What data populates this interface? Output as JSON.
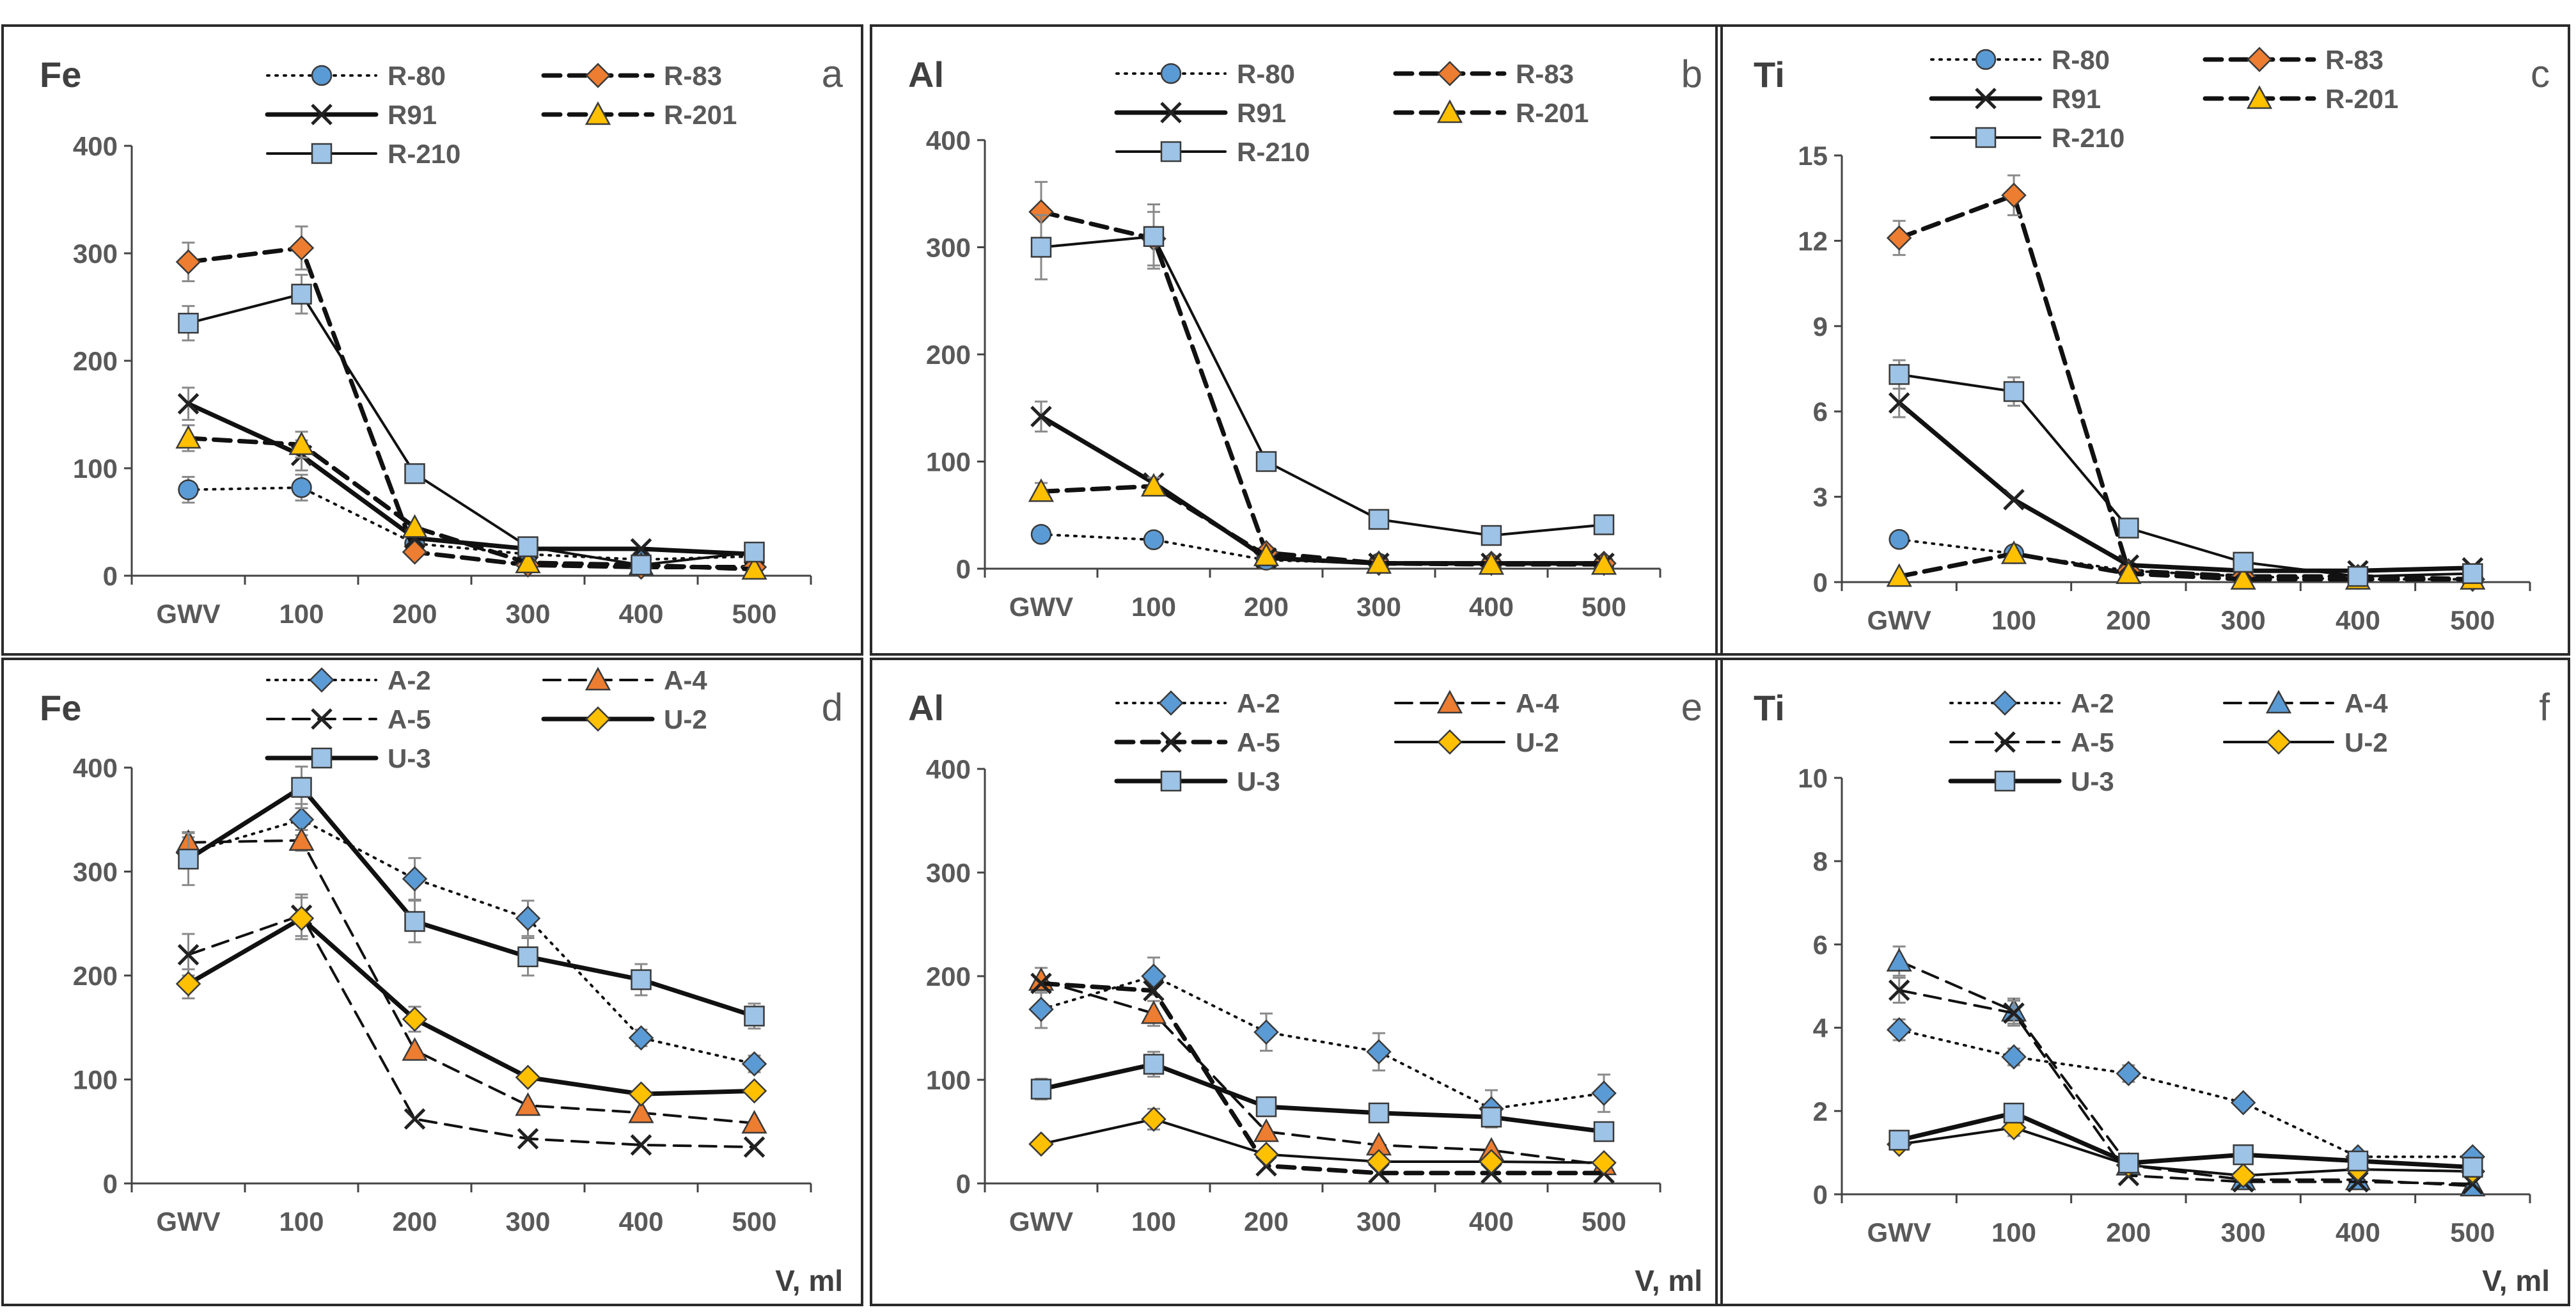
{
  "figure": {
    "x_categories": [
      "GWV",
      "100",
      "200",
      "300",
      "400",
      "500"
    ],
    "x_axis_label": "V, ml"
  },
  "chart_data": [
    {
      "id": "a",
      "type": "line",
      "panel_letter": "a",
      "title": "Fe",
      "categories": [
        "GWV",
        "100",
        "200",
        "300",
        "400",
        "500"
      ],
      "ylim": [
        0,
        400
      ],
      "yticks": [
        0,
        100,
        200,
        300,
        400
      ],
      "xlabel": "",
      "series": [
        {
          "name": "R-80",
          "values": [
            80,
            82,
            30,
            20,
            15,
            18
          ],
          "err": [
            12,
            12,
            0,
            0,
            0,
            0
          ],
          "marker": "circle",
          "fill": "#5b9bd5",
          "dash": "dot",
          "weight": "normal"
        },
        {
          "name": "R-83",
          "values": [
            292,
            305,
            22,
            10,
            8,
            8
          ],
          "err": [
            18,
            20,
            0,
            0,
            0,
            0
          ],
          "marker": "diamond",
          "fill": "#ed7d31",
          "dash": "dash",
          "weight": "bold"
        },
        {
          "name": "R91",
          "values": [
            160,
            112,
            35,
            25,
            25,
            20
          ],
          "err": [
            15,
            14,
            0,
            0,
            0,
            0
          ],
          "marker": "x",
          "fill": "none",
          "dash": "solid",
          "weight": "bold"
        },
        {
          "name": "R-201",
          "values": [
            128,
            122,
            45,
            12,
            10,
            6
          ],
          "err": [
            12,
            12,
            0,
            0,
            0,
            0
          ],
          "marker": "triangle",
          "fill": "#ffc000",
          "dash": "dash",
          "weight": "bold"
        },
        {
          "name": "R-210",
          "values": [
            235,
            262,
            95,
            27,
            10,
            22
          ],
          "err": [
            16,
            18,
            0,
            0,
            0,
            0
          ],
          "marker": "square",
          "fill": "#9dc3e6",
          "dash": "solid",
          "weight": "normal"
        }
      ]
    },
    {
      "id": "b",
      "type": "line",
      "panel_letter": "b",
      "title": "Al",
      "categories": [
        "GWV",
        "100",
        "200",
        "300",
        "400",
        "500"
      ],
      "ylim": [
        0,
        400
      ],
      "yticks": [
        0,
        100,
        200,
        300,
        400
      ],
      "xlabel": "",
      "series": [
        {
          "name": "R-80",
          "values": [
            32,
            27,
            8,
            5,
            4,
            4
          ],
          "err": [
            0,
            0,
            0,
            0,
            0,
            0
          ],
          "marker": "circle",
          "fill": "#5b9bd5",
          "dash": "dot",
          "weight": "normal"
        },
        {
          "name": "R-83",
          "values": [
            333,
            308,
            15,
            5,
            5,
            5
          ],
          "err": [
            28,
            25,
            0,
            0,
            0,
            0
          ],
          "marker": "diamond",
          "fill": "#ed7d31",
          "dash": "dash",
          "weight": "bold"
        },
        {
          "name": "R91",
          "values": [
            142,
            80,
            10,
            5,
            5,
            5
          ],
          "err": [
            14,
            0,
            0,
            0,
            0,
            0
          ],
          "marker": "x",
          "fill": "none",
          "dash": "solid",
          "weight": "bold"
        },
        {
          "name": "R-201",
          "values": [
            72,
            77,
            12,
            5,
            4,
            4
          ],
          "err": [
            8,
            8,
            0,
            0,
            0,
            0
          ],
          "marker": "triangle",
          "fill": "#ffc000",
          "dash": "dash",
          "weight": "bold"
        },
        {
          "name": "R-210",
          "values": [
            300,
            310,
            100,
            46,
            31,
            41
          ],
          "err": [
            30,
            30,
            8,
            0,
            0,
            0
          ],
          "marker": "square",
          "fill": "#9dc3e6",
          "dash": "solid",
          "weight": "normal"
        }
      ]
    },
    {
      "id": "c",
      "type": "line",
      "panel_letter": "c",
      "title": "Ti",
      "categories": [
        "GWV",
        "100",
        "200",
        "300",
        "400",
        "500"
      ],
      "ylim": [
        0,
        15
      ],
      "yticks": [
        0,
        3,
        6,
        9,
        12,
        15
      ],
      "xlabel": "",
      "series": [
        {
          "name": "R-80",
          "values": [
            1.5,
            1.0,
            0.4,
            0.2,
            0.1,
            0.1
          ],
          "err": [
            0,
            0,
            0,
            0,
            0,
            0
          ],
          "marker": "circle",
          "fill": "#5b9bd5",
          "dash": "dot",
          "weight": "normal"
        },
        {
          "name": "R-83",
          "values": [
            12.1,
            13.6,
            0.4,
            0.2,
            0.2,
            0.1
          ],
          "err": [
            0.6,
            0.7,
            0,
            0,
            0,
            0
          ],
          "marker": "diamond",
          "fill": "#ed7d31",
          "dash": "dash",
          "weight": "bold"
        },
        {
          "name": "R91",
          "values": [
            6.3,
            2.9,
            0.6,
            0.4,
            0.4,
            0.5
          ],
          "err": [
            0.5,
            0,
            0,
            0,
            0,
            0
          ],
          "marker": "x",
          "fill": "none",
          "dash": "solid",
          "weight": "bold"
        },
        {
          "name": "R-201",
          "values": [
            0.2,
            1.0,
            0.3,
            0.1,
            0.1,
            0.1
          ],
          "err": [
            0,
            0,
            0,
            0,
            0,
            0
          ],
          "marker": "triangle",
          "fill": "#ffc000",
          "dash": "dash",
          "weight": "bold"
        },
        {
          "name": "R-210",
          "values": [
            7.3,
            6.7,
            1.9,
            0.7,
            0.2,
            0.3
          ],
          "err": [
            0.5,
            0.5,
            0,
            0,
            0,
            0
          ],
          "marker": "square",
          "fill": "#9dc3e6",
          "dash": "solid",
          "weight": "normal"
        }
      ]
    },
    {
      "id": "d",
      "type": "line",
      "panel_letter": "d",
      "title": "Fe",
      "categories": [
        "GWV",
        "100",
        "200",
        "300",
        "400",
        "500"
      ],
      "ylim": [
        0,
        400
      ],
      "yticks": [
        0,
        100,
        200,
        300,
        400
      ],
      "xlabel": "V, ml",
      "series": [
        {
          "name": "A-2",
          "values": [
            318,
            350,
            293,
            255,
            140,
            115
          ],
          "err": [
            15,
            15,
            20,
            17,
            8,
            8
          ],
          "marker": "diamond",
          "fill": "#5b9bd5",
          "dash": "dot",
          "weight": "normal"
        },
        {
          "name": "A-4",
          "values": [
            328,
            330,
            128,
            75,
            68,
            58
          ],
          "err": [
            10,
            10,
            0,
            0,
            0,
            0
          ],
          "marker": "triangle",
          "fill": "#ed7d31",
          "dash": "dash",
          "weight": "normal"
        },
        {
          "name": "A-5",
          "values": [
            220,
            258,
            62,
            43,
            37,
            35
          ],
          "err": [
            20,
            20,
            0,
            0,
            0,
            0
          ],
          "marker": "x",
          "fill": "none",
          "dash": "dash",
          "weight": "normal"
        },
        {
          "name": "U-2",
          "values": [
            192,
            255,
            158,
            102,
            86,
            89
          ],
          "err": [
            14,
            20,
            12,
            0,
            0,
            0
          ],
          "marker": "diamond",
          "fill": "#ffc000",
          "dash": "solid",
          "weight": "bold"
        },
        {
          "name": "U-3",
          "values": [
            312,
            381,
            252,
            218,
            196,
            161
          ],
          "err": [
            25,
            20,
            20,
            18,
            15,
            12
          ],
          "marker": "square",
          "fill": "#9dc3e6",
          "dash": "solid",
          "weight": "bold"
        }
      ]
    },
    {
      "id": "e",
      "type": "line",
      "panel_letter": "e",
      "title": "Al",
      "categories": [
        "GWV",
        "100",
        "200",
        "300",
        "400",
        "500"
      ],
      "ylim": [
        0,
        400
      ],
      "yticks": [
        0,
        100,
        200,
        300,
        400
      ],
      "xlabel": "V, ml",
      "series": [
        {
          "name": "A-2",
          "values": [
            168,
            200,
            146,
            127,
            72,
            87
          ],
          "err": [
            18,
            18,
            18,
            18,
            18,
            18
          ],
          "marker": "diamond",
          "fill": "#5b9bd5",
          "dash": "dot",
          "weight": "normal"
        },
        {
          "name": "A-4",
          "values": [
            196,
            164,
            50,
            37,
            32,
            18
          ],
          "err": [
            12,
            12,
            0,
            0,
            0,
            0
          ],
          "marker": "triangle",
          "fill": "#ed7d31",
          "dash": "dash",
          "weight": "normal"
        },
        {
          "name": "A-5",
          "values": [
            193,
            186,
            17,
            10,
            10,
            10
          ],
          "err": [
            0,
            0,
            0,
            0,
            0,
            0
          ],
          "marker": "x",
          "fill": "none",
          "dash": "dash",
          "weight": "bold"
        },
        {
          "name": "U-2",
          "values": [
            38,
            62,
            28,
            21,
            21,
            20
          ],
          "err": [
            0,
            10,
            0,
            0,
            0,
            0
          ],
          "marker": "diamond",
          "fill": "#ffc000",
          "dash": "solid",
          "weight": "normal"
        },
        {
          "name": "U-3",
          "values": [
            91,
            115,
            74,
            68,
            64,
            50
          ],
          "err": [
            10,
            12,
            8,
            0,
            0,
            0
          ],
          "marker": "square",
          "fill": "#9dc3e6",
          "dash": "solid",
          "weight": "bold"
        }
      ]
    },
    {
      "id": "f",
      "type": "line",
      "panel_letter": "f",
      "title": "Ti",
      "categories": [
        "GWV",
        "100",
        "200",
        "300",
        "400",
        "500"
      ],
      "ylim": [
        0,
        10
      ],
      "yticks": [
        0,
        2,
        4,
        6,
        8,
        10
      ],
      "xlabel": "V, ml",
      "series": [
        {
          "name": "A-2",
          "values": [
            3.95,
            3.3,
            2.9,
            2.2,
            0.9,
            0.9
          ],
          "err": [
            0.25,
            0.2,
            0.2,
            0,
            0,
            0
          ],
          "marker": "diamond",
          "fill": "#5b9bd5",
          "dash": "dot",
          "weight": "normal"
        },
        {
          "name": "A-4",
          "values": [
            5.6,
            4.4,
            0.7,
            0.35,
            0.35,
            0.2
          ],
          "err": [
            0.35,
            0.3,
            0,
            0,
            0,
            0
          ],
          "marker": "triangle",
          "fill": "#5b9bd5",
          "dash": "dash",
          "weight": "normal"
        },
        {
          "name": "A-5",
          "values": [
            4.9,
            4.35,
            0.45,
            0.3,
            0.3,
            0.25
          ],
          "err": [
            0.3,
            0.3,
            0,
            0,
            0,
            0
          ],
          "marker": "x",
          "fill": "none",
          "dash": "dash",
          "weight": "normal"
        },
        {
          "name": "U-2",
          "values": [
            1.2,
            1.6,
            0.7,
            0.45,
            0.6,
            0.55
          ],
          "err": [
            0,
            0.2,
            0,
            0,
            0,
            0
          ],
          "marker": "diamond",
          "fill": "#ffc000",
          "dash": "solid",
          "weight": "normal"
        },
        {
          "name": "U-3",
          "values": [
            1.3,
            1.95,
            0.75,
            0.95,
            0.8,
            0.65
          ],
          "err": [
            0.15,
            0.2,
            0,
            0,
            0,
            0
          ],
          "marker": "square",
          "fill": "#9dc3e6",
          "dash": "solid",
          "weight": "bold"
        }
      ]
    }
  ]
}
